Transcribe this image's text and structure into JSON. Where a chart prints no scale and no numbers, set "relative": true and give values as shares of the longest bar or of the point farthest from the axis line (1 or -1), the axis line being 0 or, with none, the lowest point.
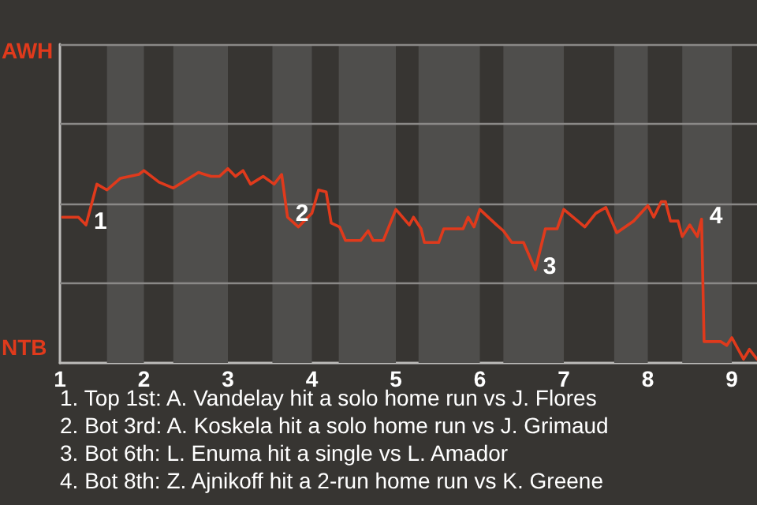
{
  "chart_data": {
    "type": "line",
    "relative": true,
    "xlim": [
      1,
      9.3
    ],
    "xticks": [
      1,
      2,
      3,
      4,
      5,
      6,
      7,
      8,
      9
    ],
    "marker": "none",
    "line_style": "solid",
    "ref_lines": [
      {
        "axis": "y",
        "value": 0.41,
        "color": "#8a8987"
      },
      {
        "axis": "y",
        "value": 0.82,
        "color": "#8a8987"
      },
      {
        "axis": "y",
        "value": 1.23,
        "color": "#8a8987"
      },
      {
        "axis": "y",
        "value": 1.64,
        "color": "#8a8987"
      }
    ],
    "series": [
      {
        "color": "#e03a1c",
        "x": [
          1.03,
          1.22,
          1.31,
          1.44,
          1.56,
          1.72,
          1.94,
          2.0,
          2.18,
          2.35,
          2.65,
          2.8,
          2.9,
          3.0,
          3.09,
          3.18,
          3.27,
          3.42,
          3.55,
          3.64,
          3.71,
          3.84,
          4.0,
          4.08,
          4.17,
          4.23,
          4.33,
          4.4,
          4.49,
          4.58,
          4.67,
          4.73,
          4.85,
          5.0,
          5.16,
          5.21,
          5.3,
          5.34,
          5.43,
          5.51,
          5.57,
          5.69,
          5.8,
          5.86,
          5.93,
          6.0,
          6.2,
          6.28,
          6.38,
          6.52,
          6.66,
          6.78,
          6.92,
          7.0,
          7.25,
          7.38,
          7.5,
          7.63,
          7.83,
          8.0,
          8.07,
          8.16,
          8.21,
          8.27,
          8.36,
          8.41,
          8.5,
          8.59,
          8.64,
          8.67,
          8.77,
          8.87,
          8.94,
          9.0,
          9.14,
          9.21,
          9.3
        ],
        "values": [
          0.75,
          0.75,
          0.71,
          0.92,
          0.89,
          0.95,
          0.97,
          0.99,
          0.93,
          0.9,
          0.98,
          0.96,
          0.96,
          1,
          0.96,
          0.99,
          0.92,
          0.96,
          0.92,
          0.97,
          0.75,
          0.7,
          0.77,
          0.89,
          0.88,
          0.72,
          0.7,
          0.63,
          0.63,
          0.63,
          0.68,
          0.63,
          0.63,
          0.79,
          0.71,
          0.75,
          0.69,
          0.62,
          0.62,
          0.62,
          0.69,
          0.69,
          0.69,
          0.75,
          0.7,
          0.79,
          0.71,
          0.68,
          0.62,
          0.62,
          0.48,
          0.69,
          0.69,
          0.79,
          0.7,
          0.77,
          0.8,
          0.67,
          0.73,
          0.81,
          0.75,
          0.83,
          0.83,
          0.73,
          0.73,
          0.65,
          0.71,
          0.65,
          0.74,
          0.11,
          0.11,
          0.11,
          0.09,
          0.13,
          0.02,
          0.07,
          0.02
        ]
      }
    ],
    "bands": [
      {
        "axis": "x",
        "from": 1.56,
        "to": 2,
        "color": "#4f4e4c"
      },
      {
        "axis": "x",
        "from": 2.35,
        "to": 3,
        "color": "#4f4e4c"
      },
      {
        "axis": "x",
        "from": 3.53,
        "to": 4,
        "color": "#4f4e4c"
      },
      {
        "axis": "x",
        "from": 4.32,
        "to": 5,
        "color": "#4f4e4c"
      },
      {
        "axis": "x",
        "from": 5.27,
        "to": 6,
        "color": "#4f4e4c"
      },
      {
        "axis": "x",
        "from": 6.28,
        "to": 7,
        "color": "#4f4e4c"
      },
      {
        "axis": "x",
        "from": 7.6,
        "to": 8,
        "color": "#4f4e4c"
      },
      {
        "axis": "x",
        "from": 8.41,
        "to": 9,
        "color": "#4f4e4c"
      }
    ],
    "annotations": [
      "AWH",
      "NTB",
      {
        "text": "1",
        "x": 1.31,
        "y": 0.71
      },
      {
        "text": "2",
        "x": 3.71,
        "y": 0.75
      },
      {
        "text": "3",
        "x": 6.66,
        "y": 0.48
      },
      {
        "text": "4",
        "x": 8.64,
        "y": 0.74
      },
      "1. Top 1st: A. Vandelay hit a solo home run vs J. Flores",
      "2. Bot 3rd: A. Koskela hit a solo home run vs J. Grimaud",
      "3. Bot 6th: L. Enuma hit a single vs L. Amador",
      "4. Bot 8th: Z. Ajnikoff hit a 2-run home run vs K. Greene"
    ]
  }
}
